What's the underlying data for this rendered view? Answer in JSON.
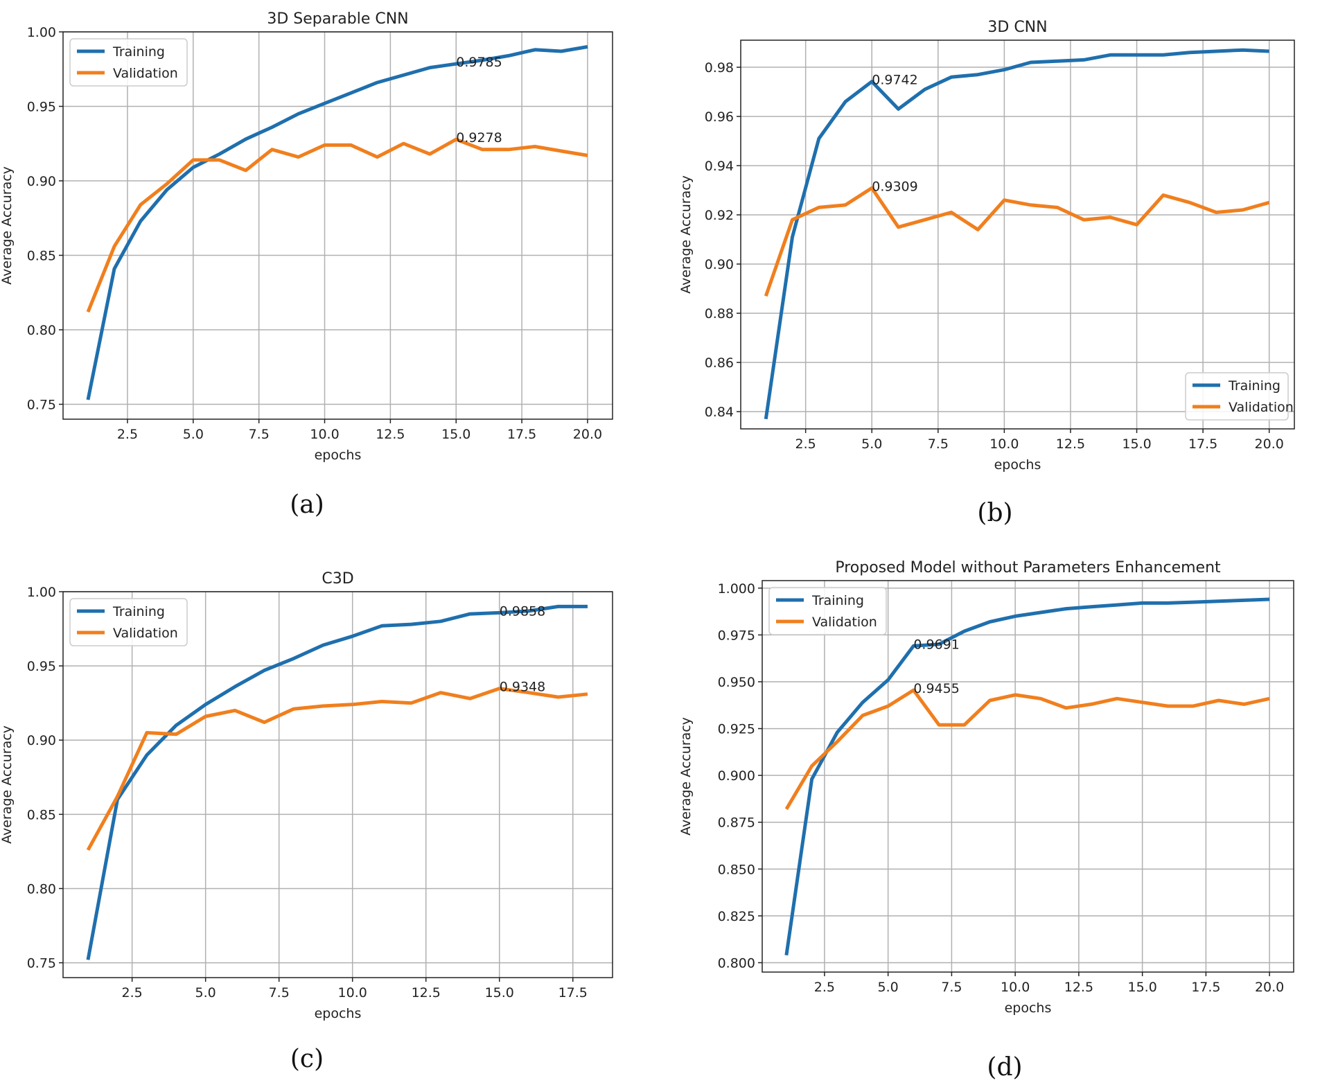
{
  "chart_data": [
    {
      "type": "line",
      "title": "3D Separable CNN",
      "caption": "(a)",
      "xlabel": "epochs",
      "ylabel": "Average Accuracy",
      "xlim": [
        0.05,
        20.95
      ],
      "ylim": [
        0.74,
        1.0
      ],
      "xticks": [
        2.5,
        5.0,
        7.5,
        10.0,
        12.5,
        15.0,
        17.5,
        20.0
      ],
      "yticks": [
        0.75,
        0.8,
        0.85,
        0.9,
        0.95,
        1.0
      ],
      "tick_decimals": 2,
      "grid": true,
      "legend_position": "top-left",
      "series": [
        {
          "name": "Training",
          "color": "#1f6fad",
          "x": [
            1,
            2,
            3,
            4,
            5,
            6,
            7,
            8,
            9,
            10,
            11,
            12,
            13,
            14,
            15,
            16,
            17,
            18,
            19,
            20
          ],
          "values": [
            0.753,
            0.841,
            0.873,
            0.894,
            0.909,
            0.918,
            0.928,
            0.936,
            0.945,
            0.952,
            0.959,
            0.966,
            0.971,
            0.976,
            0.9785,
            0.981,
            0.984,
            0.988,
            0.987,
            0.99
          ]
        },
        {
          "name": "Validation",
          "color": "#f07f1e",
          "x": [
            1,
            2,
            3,
            4,
            5,
            6,
            7,
            8,
            9,
            10,
            11,
            12,
            13,
            14,
            15,
            16,
            17,
            18,
            19,
            20
          ],
          "values": [
            0.812,
            0.856,
            0.884,
            0.898,
            0.914,
            0.914,
            0.907,
            0.921,
            0.916,
            0.924,
            0.924,
            0.916,
            0.925,
            0.918,
            0.9278,
            0.921,
            0.921,
            0.923,
            0.92,
            0.917
          ]
        }
      ],
      "annotations": [
        {
          "text": "0.9785",
          "x": 15,
          "y": 0.9785
        },
        {
          "text": "0.9278",
          "x": 15,
          "y": 0.9278
        }
      ]
    },
    {
      "type": "line",
      "title": "3D CNN",
      "caption": "(b)",
      "xlabel": "epochs",
      "ylabel": "Average Accuracy",
      "xlim": [
        0.05,
        20.95
      ],
      "ylim": [
        0.833,
        0.991
      ],
      "xticks": [
        2.5,
        5.0,
        7.5,
        10.0,
        12.5,
        15.0,
        17.5,
        20.0
      ],
      "yticks": [
        0.84,
        0.86,
        0.88,
        0.9,
        0.92,
        0.94,
        0.96,
        0.98
      ],
      "tick_decimals": 2,
      "grid": true,
      "legend_position": "bottom-right",
      "series": [
        {
          "name": "Training",
          "color": "#1f6fad",
          "x": [
            1,
            2,
            3,
            4,
            5,
            6,
            7,
            8,
            9,
            10,
            11,
            12,
            13,
            14,
            15,
            16,
            17,
            18,
            19,
            20
          ],
          "values": [
            0.837,
            0.911,
            0.951,
            0.966,
            0.9742,
            0.963,
            0.971,
            0.976,
            0.977,
            0.979,
            0.982,
            0.9825,
            0.983,
            0.985,
            0.985,
            0.985,
            0.986,
            0.9865,
            0.987,
            0.9865
          ]
        },
        {
          "name": "Validation",
          "color": "#f07f1e",
          "x": [
            1,
            2,
            3,
            4,
            5,
            6,
            7,
            8,
            9,
            10,
            11,
            12,
            13,
            14,
            15,
            16,
            17,
            18,
            19,
            20
          ],
          "values": [
            0.887,
            0.918,
            0.923,
            0.924,
            0.9309,
            0.915,
            0.918,
            0.921,
            0.914,
            0.926,
            0.924,
            0.923,
            0.918,
            0.919,
            0.916,
            0.928,
            0.925,
            0.921,
            0.922,
            0.925
          ]
        }
      ],
      "annotations": [
        {
          "text": "0.9742",
          "x": 5,
          "y": 0.9742
        },
        {
          "text": "0.9309",
          "x": 5,
          "y": 0.9309
        }
      ]
    },
    {
      "type": "line",
      "title": "C3D",
      "caption": "(c)",
      "xlabel": "epochs",
      "ylabel": "Average Accuracy",
      "xlim": [
        0.15,
        18.85
      ],
      "ylim": [
        0.74,
        1.0
      ],
      "xticks": [
        2.5,
        5.0,
        7.5,
        10.0,
        12.5,
        15.0,
        17.5
      ],
      "yticks": [
        0.75,
        0.8,
        0.85,
        0.9,
        0.95,
        1.0
      ],
      "tick_decimals": 2,
      "grid": true,
      "legend_position": "top-left",
      "series": [
        {
          "name": "Training",
          "color": "#1f6fad",
          "x": [
            1,
            2,
            3,
            4,
            5,
            6,
            7,
            8,
            9,
            10,
            11,
            12,
            13,
            14,
            15,
            16,
            17,
            18
          ],
          "values": [
            0.752,
            0.86,
            0.89,
            0.91,
            0.924,
            0.936,
            0.947,
            0.955,
            0.964,
            0.97,
            0.977,
            0.978,
            0.98,
            0.985,
            0.9858,
            0.987,
            0.99,
            0.99
          ]
        },
        {
          "name": "Validation",
          "color": "#f07f1e",
          "x": [
            1,
            2,
            3,
            4,
            5,
            6,
            7,
            8,
            9,
            10,
            11,
            12,
            13,
            14,
            15,
            16,
            17,
            18
          ],
          "values": [
            0.826,
            0.862,
            0.905,
            0.904,
            0.916,
            0.92,
            0.912,
            0.921,
            0.923,
            0.924,
            0.926,
            0.925,
            0.932,
            0.928,
            0.9348,
            0.932,
            0.929,
            0.931
          ]
        }
      ],
      "annotations": [
        {
          "text": "0.9858",
          "x": 15,
          "y": 0.9858
        },
        {
          "text": "0.9348",
          "x": 15,
          "y": 0.9348
        }
      ]
    },
    {
      "type": "line",
      "title": "Proposed Model without Parameters Enhancement",
      "caption": "(d)",
      "xlabel": "epochs",
      "ylabel": "Average Accuracy",
      "xlim": [
        0.05,
        20.95
      ],
      "ylim": [
        0.795,
        1.004
      ],
      "xticks": [
        2.5,
        5.0,
        7.5,
        10.0,
        12.5,
        15.0,
        17.5,
        20.0
      ],
      "yticks": [
        0.8,
        0.825,
        0.85,
        0.875,
        0.9,
        0.925,
        0.95,
        0.975,
        1.0
      ],
      "tick_decimals": 3,
      "grid": true,
      "legend_position": "top-left",
      "series": [
        {
          "name": "Training",
          "color": "#1f6fad",
          "x": [
            1,
            2,
            3,
            4,
            5,
            6,
            7,
            8,
            9,
            10,
            11,
            12,
            13,
            14,
            15,
            16,
            17,
            18,
            19,
            20
          ],
          "values": [
            0.804,
            0.898,
            0.923,
            0.939,
            0.951,
            0.9691,
            0.97,
            0.977,
            0.982,
            0.985,
            0.987,
            0.989,
            0.99,
            0.991,
            0.992,
            0.992,
            0.9925,
            0.993,
            0.9935,
            0.994
          ]
        },
        {
          "name": "Validation",
          "color": "#f07f1e",
          "x": [
            1,
            2,
            3,
            4,
            5,
            6,
            7,
            8,
            9,
            10,
            11,
            12,
            13,
            14,
            15,
            16,
            17,
            18,
            19,
            20
          ],
          "values": [
            0.882,
            0.905,
            0.918,
            0.932,
            0.937,
            0.9455,
            0.927,
            0.927,
            0.94,
            0.943,
            0.941,
            0.936,
            0.938,
            0.941,
            0.939,
            0.937,
            0.937,
            0.94,
            0.938,
            0.941
          ]
        }
      ],
      "annotations": [
        {
          "text": "0.9691",
          "x": 6,
          "y": 0.9691
        },
        {
          "text": "0.9455",
          "x": 6,
          "y": 0.9455
        }
      ]
    }
  ]
}
